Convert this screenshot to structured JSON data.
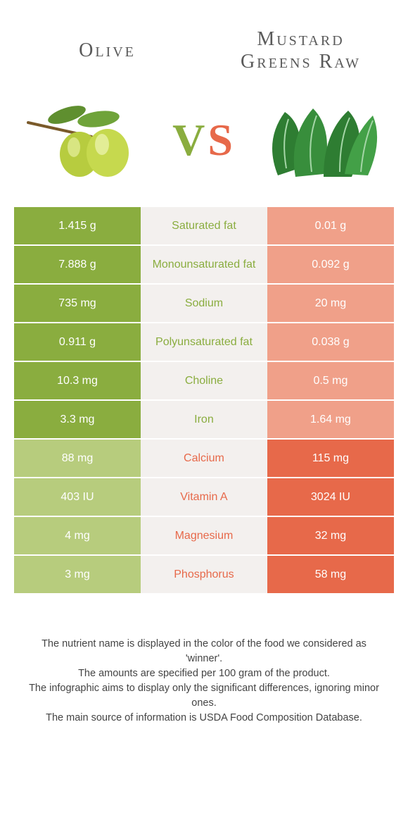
{
  "header": {
    "left_title": "Olive",
    "right_title": "Mustard Greens Raw",
    "vs_v": "V",
    "vs_s": "S"
  },
  "colors": {
    "olive_strong": "#8aad3f",
    "olive_weak": "#b7cc7d",
    "mustard_strong": "#e7694a",
    "mustard_weak": "#f0a089",
    "mid_bg": "#f3f0ee",
    "label_olive": "#8aad3f",
    "label_mustard": "#e7694a"
  },
  "rows": [
    {
      "label": "Saturated fat",
      "left": "1.415 g",
      "right": "0.01 g",
      "winner": "olive"
    },
    {
      "label": "Monounsaturated fat",
      "left": "7.888 g",
      "right": "0.092 g",
      "winner": "olive"
    },
    {
      "label": "Sodium",
      "left": "735 mg",
      "right": "20 mg",
      "winner": "olive"
    },
    {
      "label": "Polyunsaturated fat",
      "left": "0.911 g",
      "right": "0.038 g",
      "winner": "olive"
    },
    {
      "label": "Choline",
      "left": "10.3 mg",
      "right": "0.5 mg",
      "winner": "olive"
    },
    {
      "label": "Iron",
      "left": "3.3 mg",
      "right": "1.64 mg",
      "winner": "olive"
    },
    {
      "label": "Calcium",
      "left": "88 mg",
      "right": "115 mg",
      "winner": "mustard"
    },
    {
      "label": "Vitamin A",
      "left": "403 IU",
      "right": "3024 IU",
      "winner": "mustard"
    },
    {
      "label": "Magnesium",
      "left": "4 mg",
      "right": "32 mg",
      "winner": "mustard"
    },
    {
      "label": "Phosphorus",
      "left": "3 mg",
      "right": "58 mg",
      "winner": "mustard"
    }
  ],
  "footer": {
    "line1": "The nutrient name is displayed in the color of the food we considered as 'winner'.",
    "line2": "The amounts are specified per 100 gram of the product.",
    "line3": "The infographic aims to display only the significant differences, ignoring minor ones.",
    "line4": "The main source of information is USDA Food Composition Database."
  }
}
